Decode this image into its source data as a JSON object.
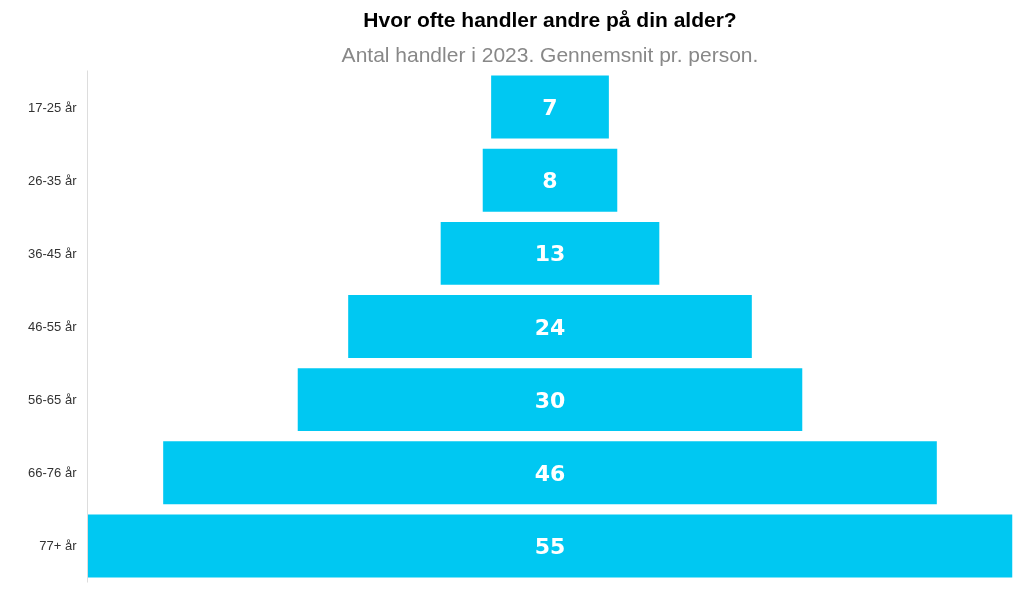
{
  "chart_data": {
    "type": "other",
    "title": "Hvor ofte handler andre på din alder?",
    "subtitle": "Antal handler i 2023. Gennemsnit pr. person.",
    "categories": [
      "17-25 år",
      "26-35 år",
      "36-45 år",
      "46-55 år",
      "56-65 år",
      "66-76 år",
      "77+ år"
    ],
    "values": [
      7,
      8,
      13,
      24,
      30,
      46,
      55
    ],
    "color": "#00c8f2",
    "data_labels": true
  }
}
